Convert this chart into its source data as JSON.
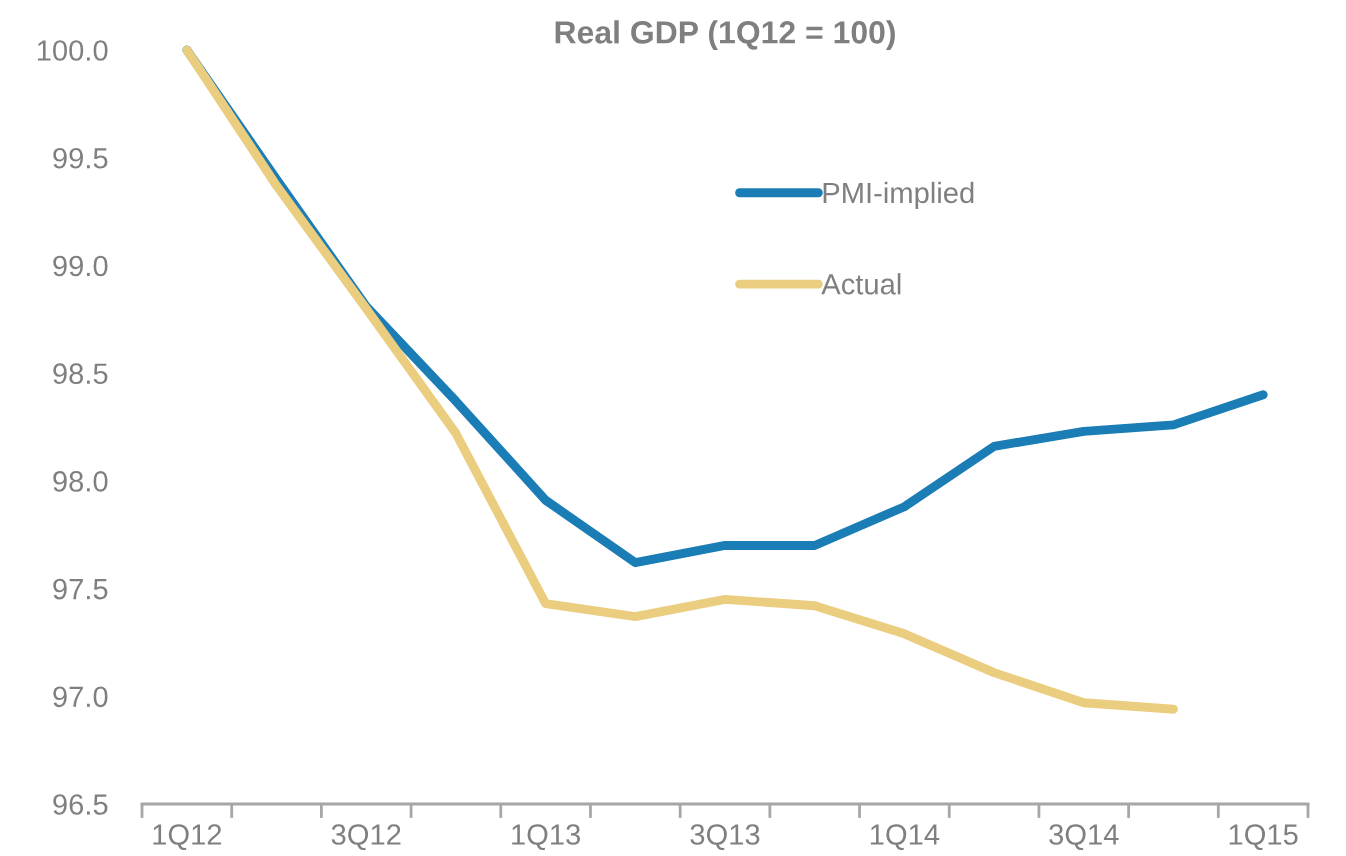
{
  "chart_data": {
    "type": "line",
    "title": "Real GDP (1Q12 = 100)",
    "categories": [
      "1Q12",
      null,
      "3Q12",
      null,
      "1Q13",
      null,
      "3Q13",
      null,
      "1Q14",
      null,
      "3Q14",
      null,
      "1Q15"
    ],
    "series": [
      {
        "name": "PMI-implied",
        "color": "#1b7db5",
        "values": [
          100.0,
          99.4,
          98.81,
          98.37,
          97.91,
          97.62,
          97.7,
          97.7,
          97.88,
          98.16,
          98.23,
          98.26,
          98.4
        ]
      },
      {
        "name": "Actual",
        "color": "#ebcd7f",
        "values": [
          100.0,
          99.37,
          98.8,
          98.22,
          97.43,
          97.37,
          97.45,
          97.42,
          97.29,
          97.11,
          96.97,
          96.94,
          null
        ]
      }
    ],
    "ylim": [
      96.5,
      100.0
    ],
    "yticks": [
      {
        "value": 96.5,
        "label": "96.5"
      },
      {
        "value": 97,
        "label": "97.0"
      },
      {
        "value": 97.5,
        "label": "97.5"
      },
      {
        "value": 98,
        "label": "98.0"
      },
      {
        "value": 98.5,
        "label": "98.5"
      },
      {
        "value": 99,
        "label": "99.0"
      },
      {
        "value": 99.5,
        "label": "99.5"
      },
      {
        "value": 100,
        "label": "100.0"
      }
    ],
    "legend": "top",
    "grid": false,
    "marker": "none",
    "line_style": "solid"
  }
}
